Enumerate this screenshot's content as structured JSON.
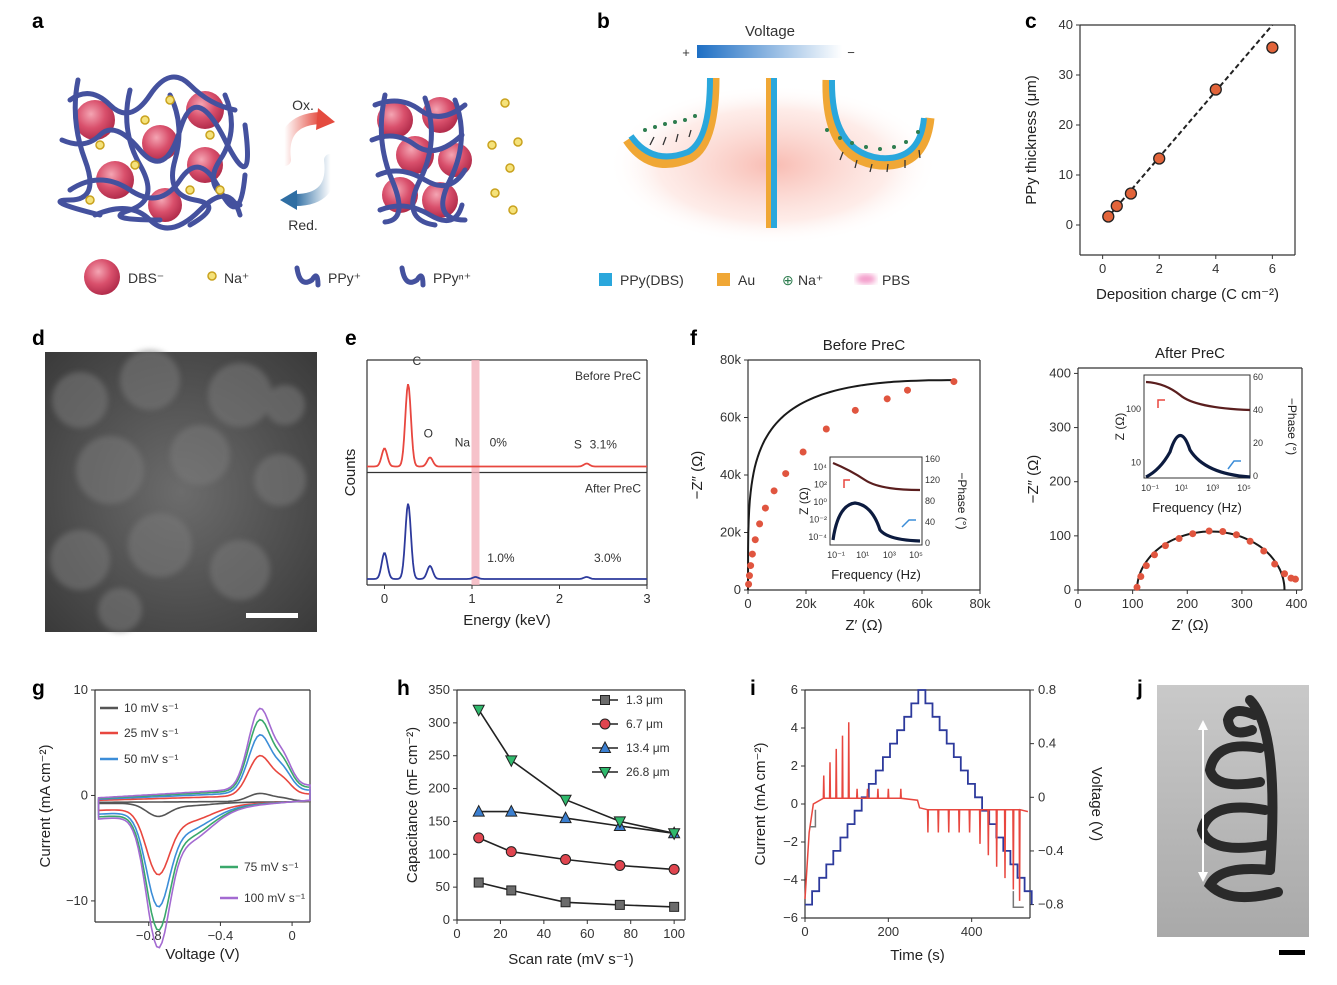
{
  "panel_labels": [
    "a",
    "b",
    "c",
    "d",
    "e",
    "f",
    "g",
    "h",
    "i",
    "j"
  ],
  "colors": {
    "pink": "#d64b6a",
    "navy": "#3d4a9c",
    "gold": "#d9b23c",
    "blue": "#2aa7dc",
    "orange": "#f0a735",
    "red": "#e8473f",
    "darkblue": "#2d3a9c",
    "grey": "#555555",
    "green": "#3aa86b",
    "purple": "#a36ad1",
    "cyan": "#3c8dd8"
  },
  "panel_a": {
    "ox_label": "Ox.",
    "red_label": "Red.",
    "legend": [
      "DBS⁻",
      "Na⁺",
      "PPy⁺",
      "PPyⁿ⁺"
    ]
  },
  "panel_b": {
    "voltage_label": "Voltage",
    "plus": "+",
    "minus": "−",
    "legend": [
      "PPy(DBS)",
      "Au",
      "Na⁺",
      "PBS"
    ]
  },
  "panel_d": {
    "scalebar": ""
  },
  "chart_data": [
    {
      "id": "c",
      "type": "scatter",
      "xlabel": "Deposition charge (C cm⁻²)",
      "ylabel": "PPy thickness (μm)",
      "xlim": [
        -0.8,
        6.8
      ],
      "ylim": [
        -6,
        40
      ],
      "xticks": [
        0,
        2,
        4,
        6
      ],
      "yticks": [
        0,
        10,
        20,
        30,
        40
      ],
      "x": [
        0.2,
        0.5,
        1.0,
        2.0,
        4.0,
        6.0
      ],
      "y": [
        1.7,
        3.8,
        6.3,
        13.3,
        27.1,
        35.5
      ],
      "fit_line": {
        "x": [
          0.1,
          6.0
        ],
        "y": [
          1.0,
          40.0
        ]
      }
    },
    {
      "id": "e",
      "type": "line",
      "xlabel": "Energy (keV)",
      "ylabel": "Counts",
      "xlim": [
        -0.2,
        3.0
      ],
      "xticks": [
        0,
        1,
        2,
        3
      ],
      "highlight_x": 1.04,
      "series": [
        {
          "name": "Before PreC",
          "peaks": [
            {
              "x": 0.0,
              "h": 0.18
            },
            {
              "x": 0.27,
              "h": 0.82
            },
            {
              "x": 0.52,
              "h": 0.09
            },
            {
              "x": 2.31,
              "h": 0.03
            }
          ],
          "labels": [
            {
              "text": "C",
              "x": 0.37,
              "yf": 0.97
            },
            {
              "text": "O",
              "x": 0.5,
              "yf": 0.25
            },
            {
              "text": "Na",
              "x": 0.89,
              "yf": 0.16
            },
            {
              "text": "0%",
              "x": 1.3,
              "yf": 0.16
            },
            {
              "text": "S",
              "x": 2.21,
              "yf": 0.14
            },
            {
              "text": "3.1%",
              "x": 2.5,
              "yf": 0.14
            }
          ]
        },
        {
          "name": "After PreC",
          "peaks": [
            {
              "x": 0.0,
              "h": 0.26
            },
            {
              "x": 0.27,
              "h": 0.75
            },
            {
              "x": 0.52,
              "h": 0.13
            },
            {
              "x": 1.04,
              "h": 0.02
            },
            {
              "x": 2.31,
              "h": 0.02
            }
          ],
          "labels": [
            {
              "text": "1.0%",
              "x": 1.33,
              "yf": 0.13
            },
            {
              "text": "3.0%",
              "x": 2.55,
              "yf": 0.13
            }
          ]
        }
      ]
    },
    {
      "id": "f1",
      "type": "scatter",
      "title": "Before PreC",
      "xlabel": "Z′ (Ω)",
      "ylabel": "−Z″ (Ω)",
      "xlim": [
        0,
        80000
      ],
      "ylim": [
        0,
        80000
      ],
      "xticks": [
        0,
        20000,
        40000,
        60000,
        80000
      ],
      "yticks": [
        0,
        20000,
        40000,
        60000,
        80000
      ],
      "tick_labels_x": [
        "0",
        "20k",
        "40k",
        "60k",
        "80k"
      ],
      "tick_labels_y": [
        "0",
        "20k",
        "40k",
        "60k",
        "80k"
      ],
      "x": [
        200,
        500,
        900,
        1500,
        2500,
        4000,
        6000,
        9000,
        13000,
        19000,
        27000,
        37000,
        48000,
        55000,
        71000
      ],
      "y": [
        2000,
        5000,
        8500,
        12500,
        17500,
        23000,
        28500,
        34500,
        40500,
        48000,
        56000,
        62500,
        66500,
        69500,
        72500
      ],
      "inset": {
        "xlabel": "Frequency (Hz)",
        "ylabel": "Z (Ω)",
        "y2label": "−Phase (°)",
        "xtick_labels": [
          "10⁻¹",
          "10¹",
          "10³",
          "10⁵"
        ],
        "ytick_labels": [
          "10⁴",
          "10²",
          "10⁰",
          "10⁻²",
          "10⁻⁴"
        ],
        "y2tick_labels": [
          "160",
          "120",
          "80",
          "40",
          "0"
        ]
      }
    },
    {
      "id": "f2",
      "type": "scatter",
      "title": "After PreC",
      "xlabel": "Z′ (Ω)",
      "ylabel": "−Z″ (Ω)",
      "xlim": [
        0,
        410
      ],
      "ylim": [
        0,
        410
      ],
      "xticks": [
        0,
        100,
        200,
        300,
        400
      ],
      "yticks": [
        0,
        100,
        200,
        300,
        400
      ],
      "x": [
        108,
        115,
        125,
        140,
        160,
        185,
        210,
        240,
        265,
        290,
        315,
        340,
        360,
        378,
        390,
        398
      ],
      "y": [
        5,
        25,
        45,
        65,
        82,
        95,
        104,
        109,
        108,
        102,
        90,
        72,
        48,
        30,
        22,
        20
      ],
      "inset": {
        "xlabel": "Frequency (Hz)",
        "ylabel": "Z (Ω)",
        "y2label": "−Phase (°)",
        "xtick_labels": [
          "10⁻¹",
          "10¹",
          "10³",
          "10⁵"
        ],
        "ytick_labels": [
          "100",
          "10"
        ],
        "y2tick_labels": [
          "60",
          "40",
          "20",
          "0"
        ]
      }
    },
    {
      "id": "g",
      "type": "line",
      "xlabel": "Voltage (V)",
      "ylabel": "Current (mA cm⁻²)",
      "xlim": [
        -1.1,
        0.1
      ],
      "ylim": [
        -12,
        10
      ],
      "xticks": [
        -0.8,
        -0.4,
        0
      ],
      "yticks": [
        -10,
        0,
        10
      ],
      "tick_labels_x": [
        "−0.8",
        "−0.4",
        "0"
      ],
      "tick_labels_y": [
        "−10",
        "0",
        "10"
      ],
      "series": [
        {
          "name": "10 mV s⁻¹",
          "scale": 0.1
        },
        {
          "name": "25 mV s⁻¹",
          "scale": 0.5
        },
        {
          "name": "50 mV s⁻¹",
          "scale": 0.72
        },
        {
          "name": "75 mV s⁻¹",
          "scale": 0.88
        },
        {
          "name": "100 mV s⁻¹",
          "scale": 1.0
        }
      ]
    },
    {
      "id": "h",
      "type": "line",
      "xlabel": "Scan rate (mV s⁻¹)",
      "ylabel": "Capacitance (mF cm⁻²)",
      "xlim": [
        0,
        105
      ],
      "ylim": [
        0,
        350
      ],
      "xticks": [
        0,
        20,
        40,
        60,
        80,
        100
      ],
      "yticks": [
        0,
        50,
        100,
        150,
        200,
        250,
        300,
        350
      ],
      "x": [
        10,
        25,
        50,
        75,
        100
      ],
      "series": [
        {
          "name": "1.3 μm",
          "values": [
            57,
            45,
            27,
            23,
            20
          ]
        },
        {
          "name": "6.7 μm",
          "values": [
            125,
            104,
            92,
            83,
            77
          ]
        },
        {
          "name": "13.4 μm",
          "values": [
            165,
            165,
            155,
            143,
            132
          ]
        },
        {
          "name": "26.8 μm",
          "values": [
            320,
            243,
            183,
            150,
            132
          ]
        }
      ]
    },
    {
      "id": "i",
      "type": "line",
      "xlabel": "Time (s)",
      "ylabel": "Current (mA cm⁻²)",
      "y2label": "Voltage (V)",
      "xlim": [
        0,
        540
      ],
      "ylim": [
        -6,
        6
      ],
      "y2lim": [
        -0.9,
        0.8
      ],
      "xticks": [
        0,
        200,
        400
      ],
      "yticks": [
        -6,
        -4,
        -2,
        0,
        2,
        4,
        6
      ],
      "y2ticks": [
        -0.8,
        -0.4,
        0,
        0.4,
        0.8
      ],
      "tick_labels_y": [
        "−6",
        "−4",
        "−2",
        "0",
        "2",
        "4",
        "6"
      ],
      "tick_labels_y2": [
        "−0.8",
        "−0.4",
        "0",
        "0.4",
        "0.8"
      ]
    }
  ]
}
